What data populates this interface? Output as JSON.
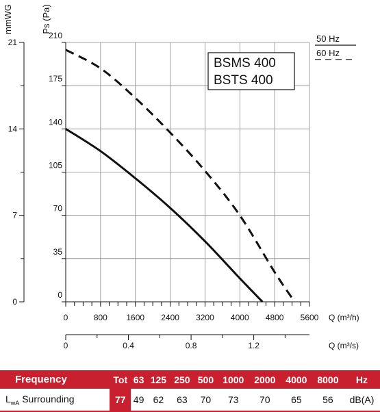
{
  "chart_data": {
    "type": "line",
    "left_axis_label": "mmWG",
    "left_axis_ticks": [
      "21",
      "14",
      "7",
      "0"
    ],
    "ylabel": "Ps (Pa)",
    "y_ticks": [
      "210",
      "175",
      "140",
      "105",
      "70",
      "35",
      "0"
    ],
    "ylim": [
      0,
      210
    ],
    "xlabel": "Q (m³/h)",
    "x_ticks": [
      "0",
      "800",
      "1600",
      "2400",
      "3200",
      "4000",
      "4800",
      "5600"
    ],
    "xlim": [
      0,
      5600
    ],
    "x2label": "Q (m³/s)",
    "x2_ticks": [
      "0",
      "0.4",
      "0.8",
      "1.2"
    ],
    "models": [
      "BSMS 400",
      "BSTS 400"
    ],
    "grid": true,
    "legend_position": "top-right",
    "series": [
      {
        "name": "50 Hz",
        "style": "solid",
        "color": "#111111",
        "points": [
          [
            0,
            140
          ],
          [
            800,
            122
          ],
          [
            1600,
            100
          ],
          [
            2400,
            76
          ],
          [
            3200,
            49
          ],
          [
            4000,
            19
          ],
          [
            4520,
            0
          ]
        ]
      },
      {
        "name": "60 Hz",
        "style": "dashed",
        "color": "#111111",
        "points": [
          [
            0,
            204
          ],
          [
            800,
            189
          ],
          [
            1600,
            165
          ],
          [
            2400,
            137
          ],
          [
            3200,
            106
          ],
          [
            4000,
            70
          ],
          [
            4800,
            24
          ],
          [
            5260,
            0
          ]
        ]
      }
    ]
  },
  "table": {
    "header_label": "Frequency",
    "tot_label": "Tot",
    "bands": [
      "63",
      "125",
      "250",
      "500",
      "1000",
      "2000",
      "4000",
      "8000"
    ],
    "unit_hz": "Hz",
    "row_label_main": "L",
    "row_label_sub": "wA",
    "row_label_rest": " Surrounding",
    "tot_value": "77",
    "values": [
      "49",
      "62",
      "63",
      "70",
      "73",
      "70",
      "65",
      "56"
    ],
    "unit_db": "dB(A)"
  },
  "colors": {
    "accent": "#c8202e",
    "curve": "#111111",
    "grid": "#888888"
  }
}
